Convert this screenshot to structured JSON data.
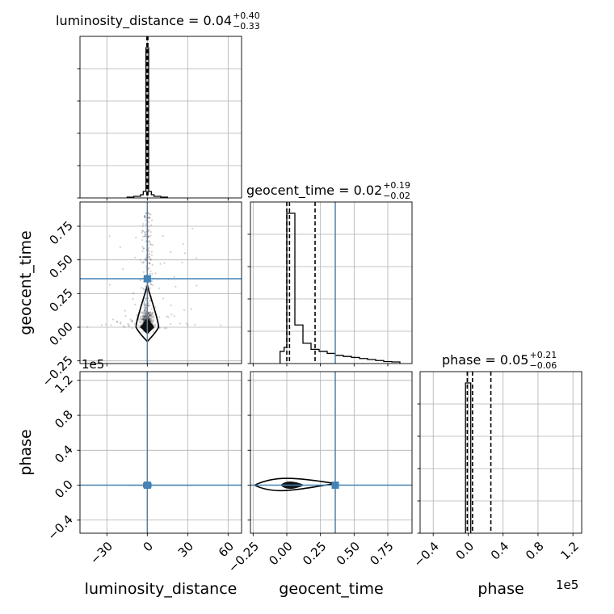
{
  "chart_data": {
    "type": "scatter",
    "truth_color": "#4682b4",
    "parameters": [
      "luminosity_distance",
      "geocent_time",
      "phase"
    ],
    "titles": [
      {
        "param": "luminosity_distance",
        "text": "luminosity_distance = 0.04",
        "sup": "+0.40",
        "sub": "−0.33"
      },
      {
        "param": "geocent_time",
        "text": "geocent_time = 0.02",
        "sup": "+0.19",
        "sub": "−0.02"
      },
      {
        "param": "phase",
        "text": "phase = 0.05",
        "sup": "+0.21",
        "sub": "−0.06"
      }
    ],
    "xlabels": {
      "luminosity_distance": "luminosity_distance",
      "geocent_time": "geocent_time",
      "phase": "phase"
    },
    "ylabels": {
      "geocent_time": "geocent_time",
      "phase": "phase"
    },
    "offset_labels": {
      "phase_y": "1e5",
      "phase_x": "1e5"
    },
    "ranges": {
      "luminosity_distance": [
        -50,
        70
      ],
      "geocent_time": [
        -0.27,
        0.93
      ],
      "phase": [
        -0.55,
        1.3
      ]
    },
    "ticks": {
      "luminosity_distance": [
        "−30",
        "0",
        "30",
        "60"
      ],
      "geocent_time": [
        "−0.25",
        "0.00",
        "0.25",
        "0.50",
        "0.75"
      ],
      "phase": [
        "−0.4",
        "0.0",
        "0.4",
        "0.8",
        "1.2"
      ]
    },
    "tick_values": {
      "luminosity_distance": [
        -30,
        0,
        30,
        60
      ],
      "geocent_time": [
        -0.25,
        0.0,
        0.25,
        0.5,
        0.75
      ],
      "phase": [
        -0.4,
        0.0,
        0.4,
        0.8,
        1.2
      ]
    },
    "truths": {
      "luminosity_distance": 0.0,
      "geocent_time": 0.36,
      "phase": 0.0
    },
    "quantiles": {
      "luminosity_distance": [
        -0.29,
        0.04,
        0.44
      ],
      "geocent_time": [
        0.0,
        0.02,
        0.21
      ],
      "phase": [
        -0.01,
        0.05,
        0.26
      ]
    },
    "histograms": {
      "luminosity_distance": {
        "edges": [
          -15,
          -10,
          -5,
          -3,
          -1,
          1,
          3,
          5,
          10,
          15
        ],
        "counts": [
          0.005,
          0.01,
          0.02,
          0.04,
          0.93,
          0.04,
          0.02,
          0.01,
          0.005
        ]
      },
      "geocent_time": {
        "edges": [
          -0.05,
          -0.02,
          0.0,
          0.06,
          0.12,
          0.18,
          0.24,
          0.3,
          0.36,
          0.42,
          0.48,
          0.54,
          0.6,
          0.66,
          0.72,
          0.78,
          0.84
        ],
        "counts": [
          0.06,
          0.08,
          0.74,
          0.19,
          0.1,
          0.07,
          0.06,
          0.05,
          0.04,
          0.035,
          0.03,
          0.025,
          0.02,
          0.015,
          0.01,
          0.008
        ]
      },
      "phase": {
        "edges": [
          -0.03,
          0.03
        ],
        "counts": [
          1.0
        ]
      }
    }
  }
}
